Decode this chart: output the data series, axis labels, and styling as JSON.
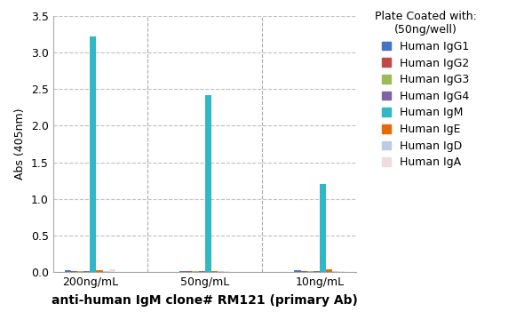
{
  "title": "",
  "xlabel": "anti-human IgM clone# RM121 (primary Ab)",
  "ylabel": "Abs (405nm)",
  "legend_title": "Plate Coated with:\n(50ng/well)",
  "groups": [
    "200ng/mL",
    "50ng/mL",
    "10ng/mL"
  ],
  "series": [
    {
      "label": "Human IgG1",
      "color": "#4472C4",
      "values": [
        0.02,
        0.01,
        0.02
      ]
    },
    {
      "label": "Human IgG2",
      "color": "#BE4B48",
      "values": [
        0.01,
        0.01,
        0.01
      ]
    },
    {
      "label": "Human IgG3",
      "color": "#9BBB59",
      "values": [
        0.01,
        0.01,
        0.01
      ]
    },
    {
      "label": "Human IgG4",
      "color": "#8064A2",
      "values": [
        0.01,
        0.01,
        0.01
      ]
    },
    {
      "label": "Human IgM",
      "color": "#31B7C5",
      "values": [
        3.22,
        2.42,
        1.2
      ]
    },
    {
      "label": "Human IgE",
      "color": "#E36C09",
      "values": [
        0.02,
        0.01,
        0.04
      ]
    },
    {
      "label": "Human IgD",
      "color": "#B8CCE4",
      "values": [
        0.01,
        0.01,
        0.01
      ]
    },
    {
      "label": "Human IgA",
      "color": "#F2DCDB",
      "values": [
        0.04,
        0.01,
        0.01
      ]
    }
  ],
  "ylim": [
    0,
    3.5
  ],
  "yticks": [
    0,
    0.5,
    1.0,
    1.5,
    2.0,
    2.5,
    3.0,
    3.5
  ],
  "bar_width": 0.055,
  "group_centers": [
    0.35,
    1.35,
    2.35
  ],
  "background_color": "#FFFFFF",
  "plot_bg_color": "#FFFFFF",
  "grid_color": "#C0C0C0",
  "xlabel_fontsize": 10,
  "ylabel_fontsize": 9,
  "legend_title_fontsize": 9,
  "legend_fontsize": 9,
  "tick_fontsize": 9
}
